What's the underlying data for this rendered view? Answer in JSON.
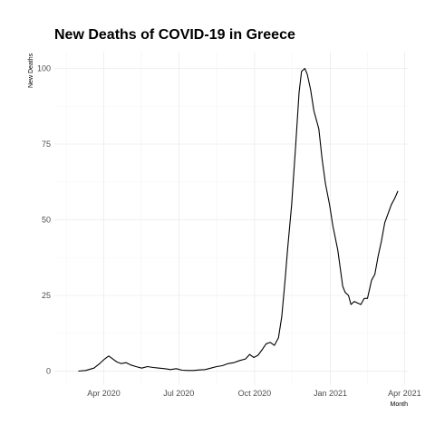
{
  "chart_data": {
    "type": "line",
    "title": "New Deaths of COVID-19 in Greece",
    "xlabel": "Month",
    "ylabel": "New Deaths",
    "x_ticks": [
      "Apr 2020",
      "Jul 2020",
      "Oct 2020",
      "Jan 2021",
      "Apr 2021"
    ],
    "y_ticks": [
      "0",
      "25",
      "50",
      "75",
      "100"
    ],
    "ylim": [
      0,
      100
    ],
    "xlim": [
      "2020-02-01",
      "2021-04-05"
    ],
    "grid": true,
    "line_color": "#000000",
    "series": [
      {
        "points": [
          [
            "2020-03-01",
            0
          ],
          [
            "2020-03-10",
            0.2
          ],
          [
            "2020-03-20",
            1
          ],
          [
            "2020-03-27",
            2.5
          ],
          [
            "2020-04-02",
            4
          ],
          [
            "2020-04-07",
            5
          ],
          [
            "2020-04-12",
            4
          ],
          [
            "2020-04-17",
            3
          ],
          [
            "2020-04-22",
            2.5
          ],
          [
            "2020-04-28",
            2.8
          ],
          [
            "2020-05-04",
            2
          ],
          [
            "2020-05-10",
            1.5
          ],
          [
            "2020-05-17",
            1
          ],
          [
            "2020-05-24",
            1.5
          ],
          [
            "2020-05-31",
            1.2
          ],
          [
            "2020-06-07",
            1
          ],
          [
            "2020-06-14",
            0.8
          ],
          [
            "2020-06-21",
            0.5
          ],
          [
            "2020-06-28",
            0.8
          ],
          [
            "2020-07-05",
            0.3
          ],
          [
            "2020-07-12",
            0.2
          ],
          [
            "2020-07-19",
            0.2
          ],
          [
            "2020-07-26",
            0.4
          ],
          [
            "2020-08-02",
            0.5
          ],
          [
            "2020-08-09",
            1
          ],
          [
            "2020-08-16",
            1.5
          ],
          [
            "2020-08-23",
            1.8
          ],
          [
            "2020-08-30",
            2.5
          ],
          [
            "2020-09-06",
            2.8
          ],
          [
            "2020-09-13",
            3.5
          ],
          [
            "2020-09-20",
            4
          ],
          [
            "2020-09-25",
            5.5
          ],
          [
            "2020-09-30",
            4.5
          ],
          [
            "2020-10-05",
            5.2
          ],
          [
            "2020-10-10",
            7
          ],
          [
            "2020-10-15",
            9
          ],
          [
            "2020-10-20",
            9.5
          ],
          [
            "2020-10-25",
            8.5
          ],
          [
            "2020-10-30",
            11
          ],
          [
            "2020-11-03",
            18
          ],
          [
            "2020-11-07",
            30
          ],
          [
            "2020-11-10",
            40
          ],
          [
            "2020-11-15",
            55
          ],
          [
            "2020-11-20",
            75
          ],
          [
            "2020-11-24",
            92
          ],
          [
            "2020-11-27",
            99
          ],
          [
            "2020-12-01",
            100
          ],
          [
            "2020-12-04",
            98
          ],
          [
            "2020-12-08",
            93
          ],
          [
            "2020-12-12",
            86
          ],
          [
            "2020-12-15",
            83
          ],
          [
            "2020-12-18",
            80
          ],
          [
            "2020-12-22",
            70
          ],
          [
            "2020-12-26",
            62
          ],
          [
            "2020-12-31",
            55
          ],
          [
            "2021-01-04",
            48
          ],
          [
            "2021-01-07",
            44
          ],
          [
            "2021-01-10",
            40
          ],
          [
            "2021-01-13",
            34
          ],
          [
            "2021-01-16",
            28
          ],
          [
            "2021-01-19",
            26
          ],
          [
            "2021-01-23",
            25
          ],
          [
            "2021-01-26",
            22
          ],
          [
            "2021-01-30",
            23
          ],
          [
            "2021-02-03",
            22.5
          ],
          [
            "2021-02-07",
            22
          ],
          [
            "2021-02-11",
            24
          ],
          [
            "2021-02-15",
            24
          ],
          [
            "2021-02-20",
            30
          ],
          [
            "2021-02-24",
            32
          ],
          [
            "2021-02-28",
            38
          ],
          [
            "2021-03-04",
            43
          ],
          [
            "2021-03-08",
            49
          ],
          [
            "2021-03-12",
            52
          ],
          [
            "2021-03-16",
            55
          ],
          [
            "2021-03-20",
            57
          ],
          [
            "2021-03-24",
            59.5
          ]
        ]
      }
    ]
  }
}
